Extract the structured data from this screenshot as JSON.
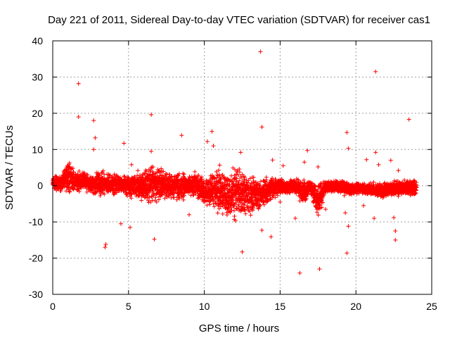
{
  "chart_data": {
    "type": "scatter",
    "title": "Day 221 of 2011, Sidereal Day-to-day VTEC variation (SDTVAR) for receiver cas1",
    "xlabel": "GPS time / hours",
    "ylabel": "SDTVAR / TECUs",
    "xlim": [
      0,
      25
    ],
    "ylim": [
      -30,
      40
    ],
    "xticks": [
      0,
      5,
      10,
      15,
      20,
      25
    ],
    "yticks": [
      -30,
      -20,
      -10,
      0,
      10,
      20,
      30,
      40
    ],
    "grid": true,
    "marker": "+",
    "color": "#ff0000",
    "series": [
      {
        "name": "SDTVAR",
        "band": [
          {
            "x": 0.0,
            "lo": -1.5,
            "hi": 3.0
          },
          {
            "x": 0.5,
            "lo": -1.5,
            "hi": 2.5
          },
          {
            "x": 1.0,
            "lo": -2.0,
            "hi": 8.0
          },
          {
            "x": 1.5,
            "lo": -2.0,
            "hi": 4.0
          },
          {
            "x": 2.0,
            "lo": -2.0,
            "hi": 5.0
          },
          {
            "x": 2.5,
            "lo": -2.0,
            "hi": 3.0
          },
          {
            "x": 3.0,
            "lo": -4.0,
            "hi": 5.0
          },
          {
            "x": 3.5,
            "lo": -2.5,
            "hi": 3.5
          },
          {
            "x": 4.0,
            "lo": -3.0,
            "hi": 4.0
          },
          {
            "x": 4.5,
            "lo": -2.0,
            "hi": 3.0
          },
          {
            "x": 5.0,
            "lo": -4.0,
            "hi": 4.0
          },
          {
            "x": 5.5,
            "lo": -4.0,
            "hi": 4.0
          },
          {
            "x": 6.0,
            "lo": -5.0,
            "hi": 5.0
          },
          {
            "x": 6.5,
            "lo": -6.0,
            "hi": 6.0
          },
          {
            "x": 7.0,
            "lo": -5.0,
            "hi": 6.0
          },
          {
            "x": 7.5,
            "lo": -5.0,
            "hi": 5.0
          },
          {
            "x": 8.0,
            "lo": -4.0,
            "hi": 4.0
          },
          {
            "x": 8.5,
            "lo": -5.0,
            "hi": 5.0
          },
          {
            "x": 9.0,
            "lo": -3.0,
            "hi": 3.5
          },
          {
            "x": 9.5,
            "lo": -4.0,
            "hi": 4.0
          },
          {
            "x": 10.0,
            "lo": -6.0,
            "hi": 3.0
          },
          {
            "x": 10.5,
            "lo": -7.0,
            "hi": 5.0
          },
          {
            "x": 11.0,
            "lo": -9.0,
            "hi": 6.0
          },
          {
            "x": 11.5,
            "lo": -10.0,
            "hi": 4.0
          },
          {
            "x": 12.0,
            "lo": -10.0,
            "hi": 6.0
          },
          {
            "x": 12.5,
            "lo": -9.0,
            "hi": 5.0
          },
          {
            "x": 13.0,
            "lo": -9.0,
            "hi": 4.0
          },
          {
            "x": 13.5,
            "lo": -8.0,
            "hi": 3.5
          },
          {
            "x": 14.0,
            "lo": -6.0,
            "hi": 3.0
          },
          {
            "x": 14.5,
            "lo": -4.0,
            "hi": 2.5
          },
          {
            "x": 15.0,
            "lo": -3.0,
            "hi": 2.5
          },
          {
            "x": 15.5,
            "lo": -2.5,
            "hi": 2.0
          },
          {
            "x": 16.0,
            "lo": -2.5,
            "hi": 2.0
          },
          {
            "x": 16.5,
            "lo": -6.0,
            "hi": 2.0
          },
          {
            "x": 17.0,
            "lo": -2.0,
            "hi": 1.5
          },
          {
            "x": 17.5,
            "lo": -10.0,
            "hi": 1.5
          },
          {
            "x": 18.0,
            "lo": -2.0,
            "hi": 1.5
          },
          {
            "x": 18.5,
            "lo": -2.0,
            "hi": 1.5
          },
          {
            "x": 19.0,
            "lo": -2.5,
            "hi": 1.5
          },
          {
            "x": 19.5,
            "lo": -3.0,
            "hi": 1.0
          },
          {
            "x": 20.0,
            "lo": -2.5,
            "hi": 1.0
          },
          {
            "x": 20.5,
            "lo": -2.5,
            "hi": 1.0
          },
          {
            "x": 21.0,
            "lo": -3.0,
            "hi": 1.0
          },
          {
            "x": 21.5,
            "lo": -4.0,
            "hi": 1.0
          },
          {
            "x": 22.0,
            "lo": -3.5,
            "hi": 1.5
          },
          {
            "x": 22.5,
            "lo": -3.0,
            "hi": 1.5
          },
          {
            "x": 23.0,
            "lo": -3.0,
            "hi": 1.5
          },
          {
            "x": 23.5,
            "lo": -3.0,
            "hi": 2.0
          },
          {
            "x": 24.0,
            "lo": -3.0,
            "hi": 2.0
          }
        ],
        "outliers": [
          {
            "x": 1.7,
            "y": 28.2
          },
          {
            "x": 1.7,
            "y": 19.0
          },
          {
            "x": 2.7,
            "y": 18.0
          },
          {
            "x": 2.8,
            "y": 13.2
          },
          {
            "x": 2.7,
            "y": 10.0
          },
          {
            "x": 3.5,
            "y": -16.2
          },
          {
            "x": 3.45,
            "y": -17.0
          },
          {
            "x": 4.5,
            "y": -10.5
          },
          {
            "x": 4.7,
            "y": 11.7
          },
          {
            "x": 5.1,
            "y": -11.5
          },
          {
            "x": 5.2,
            "y": 5.8
          },
          {
            "x": 6.5,
            "y": 19.6
          },
          {
            "x": 6.7,
            "y": -14.8
          },
          {
            "x": 6.5,
            "y": 9.5
          },
          {
            "x": 8.5,
            "y": 13.9
          },
          {
            "x": 10.2,
            "y": 12.2
          },
          {
            "x": 10.5,
            "y": 15.0
          },
          {
            "x": 10.6,
            "y": 11.0
          },
          {
            "x": 12.4,
            "y": 9.2
          },
          {
            "x": 12.5,
            "y": -18.3
          },
          {
            "x": 13.7,
            "y": 37.0
          },
          {
            "x": 13.8,
            "y": 16.2
          },
          {
            "x": 13.8,
            "y": -12.3
          },
          {
            "x": 14.4,
            "y": -14.1
          },
          {
            "x": 14.5,
            "y": 7.1
          },
          {
            "x": 15.2,
            "y": 5.5
          },
          {
            "x": 16.3,
            "y": -24.1
          },
          {
            "x": 16.8,
            "y": 9.7
          },
          {
            "x": 16.6,
            "y": 6.5
          },
          {
            "x": 17.6,
            "y": -23.0
          },
          {
            "x": 17.5,
            "y": 5.2
          },
          {
            "x": 19.4,
            "y": 14.7
          },
          {
            "x": 19.5,
            "y": 10.3
          },
          {
            "x": 19.5,
            "y": -11.2
          },
          {
            "x": 19.4,
            "y": -18.6
          },
          {
            "x": 19.3,
            "y": -7.5
          },
          {
            "x": 21.3,
            "y": 31.5
          },
          {
            "x": 21.3,
            "y": 9.2
          },
          {
            "x": 20.7,
            "y": 7.2
          },
          {
            "x": 21.5,
            "y": 5.8
          },
          {
            "x": 22.5,
            "y": -8.8
          },
          {
            "x": 22.6,
            "y": -12.5
          },
          {
            "x": 22.6,
            "y": -15.0
          },
          {
            "x": 22.3,
            "y": 7.0
          },
          {
            "x": 22.8,
            "y": 4.2
          },
          {
            "x": 23.5,
            "y": 18.3
          },
          {
            "x": 21.2,
            "y": -9.0
          },
          {
            "x": 20.5,
            "y": -5.5
          },
          {
            "x": 16.0,
            "y": -9.0
          },
          {
            "x": 18.0,
            "y": -6.5
          },
          {
            "x": 9.0,
            "y": -8.0
          },
          {
            "x": 15.0,
            "y": -4.5
          }
        ]
      }
    ]
  }
}
